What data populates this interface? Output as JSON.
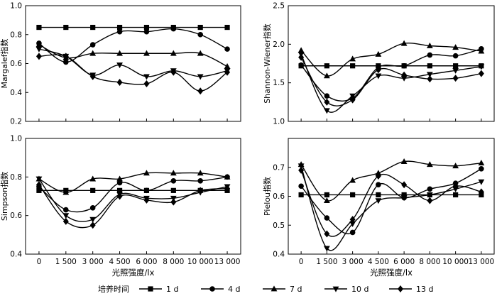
{
  "legend": {
    "title": "培养时间",
    "entries": [
      "1 d",
      "4 d",
      "7 d",
      "10 d",
      "13 d"
    ],
    "markers": [
      "square",
      "circle",
      "triangle-up",
      "triangle-down",
      "diamond"
    ]
  },
  "chart_data": [
    {
      "type": "line",
      "ylabel": "Margalef指数",
      "xlabel": "",
      "categories": [
        "0",
        "1 500",
        "3 000",
        "4 500",
        "6 000",
        "8 000",
        "10 000",
        "13 000"
      ],
      "ylim": [
        0.2,
        1.0
      ],
      "yticks": [
        0.2,
        0.4,
        0.6,
        0.8,
        1.0
      ],
      "ytick_labels": [
        "0.2",
        "0.4",
        "0.6",
        "0.8",
        "1.0"
      ],
      "show_xtick_labels": false,
      "series": [
        {
          "name": "1 d",
          "marker": "square",
          "values": [
            0.85,
            0.85,
            0.85,
            0.85,
            0.85,
            0.85,
            0.85,
            0.85
          ]
        },
        {
          "name": "4 d",
          "marker": "circle",
          "values": [
            0.74,
            0.61,
            0.73,
            0.82,
            0.82,
            0.84,
            0.8,
            0.7
          ]
        },
        {
          "name": "7 d",
          "marker": "triangle-up",
          "values": [
            0.73,
            0.64,
            0.67,
            0.67,
            0.67,
            0.67,
            0.67,
            0.58
          ]
        },
        {
          "name": "10 d",
          "marker": "triangle-down",
          "values": [
            0.7,
            0.65,
            0.52,
            0.59,
            0.51,
            0.55,
            0.51,
            0.55
          ]
        },
        {
          "name": "13 d",
          "marker": "diamond",
          "values": [
            0.65,
            0.65,
            0.51,
            0.47,
            0.46,
            0.54,
            0.41,
            0.54
          ]
        }
      ]
    },
    {
      "type": "line",
      "ylabel": "Shannon-Wiener指数",
      "xlabel": "",
      "categories": [
        "0",
        "1 500",
        "3 000",
        "4 500",
        "6 000",
        "8 000",
        "10 000",
        "13 000"
      ],
      "ylim": [
        1.0,
        2.5
      ],
      "yticks": [
        1.0,
        1.5,
        2.0,
        2.5
      ],
      "ytick_labels": [
        "1.0",
        "1.5",
        "2.0",
        "2.5"
      ],
      "show_xtick_labels": false,
      "series": [
        {
          "name": "1 d",
          "marker": "square",
          "values": [
            1.72,
            1.72,
            1.72,
            1.72,
            1.72,
            1.72,
            1.72,
            1.72
          ]
        },
        {
          "name": "4 d",
          "marker": "circle",
          "values": [
            1.73,
            1.33,
            1.3,
            1.7,
            1.72,
            1.86,
            1.85,
            1.94
          ]
        },
        {
          "name": "7 d",
          "marker": "triangle-up",
          "values": [
            1.92,
            1.59,
            1.81,
            1.87,
            2.01,
            1.98,
            1.96,
            1.91
          ]
        },
        {
          "name": "10 d",
          "marker": "triangle-down",
          "values": [
            1.87,
            1.14,
            1.33,
            1.59,
            1.56,
            1.61,
            1.66,
            1.71
          ]
        },
        {
          "name": "13 d",
          "marker": "diamond",
          "values": [
            1.83,
            1.25,
            1.28,
            1.67,
            1.6,
            1.55,
            1.56,
            1.62
          ]
        }
      ]
    },
    {
      "type": "line",
      "ylabel": "Simpson指数",
      "xlabel": "光照强度/lx",
      "categories": [
        "0",
        "1 500",
        "3 000",
        "4 500",
        "6 000",
        "8 000",
        "10 000",
        "13 000"
      ],
      "ylim": [
        0.4,
        1.0
      ],
      "yticks": [
        0.4,
        0.6,
        0.8,
        1.0
      ],
      "ytick_labels": [
        "0.4",
        "0.6",
        "0.8",
        "1.0"
      ],
      "show_xtick_labels": true,
      "series": [
        {
          "name": "1 d",
          "marker": "square",
          "values": [
            0.73,
            0.73,
            0.73,
            0.73,
            0.73,
            0.73,
            0.73,
            0.73
          ]
        },
        {
          "name": "4 d",
          "marker": "circle",
          "values": [
            0.75,
            0.63,
            0.64,
            0.77,
            0.73,
            0.78,
            0.78,
            0.8
          ]
        },
        {
          "name": "7 d",
          "marker": "triangle-up",
          "values": [
            0.79,
            0.72,
            0.79,
            0.79,
            0.82,
            0.82,
            0.82,
            0.8
          ]
        },
        {
          "name": "10 d",
          "marker": "triangle-down",
          "values": [
            0.79,
            0.6,
            0.58,
            0.71,
            0.69,
            0.69,
            0.72,
            0.75
          ]
        },
        {
          "name": "13 d",
          "marker": "diamond",
          "values": [
            0.76,
            0.57,
            0.55,
            0.7,
            0.68,
            0.67,
            0.73,
            0.74
          ]
        }
      ]
    },
    {
      "type": "line",
      "ylabel": "Pielou指数",
      "xlabel": "光照强度/lx",
      "categories": [
        "0",
        "1 500",
        "3 000",
        "4 500",
        "6 000",
        "8 000",
        "10 000",
        "13 000"
      ],
      "ylim": [
        0.4,
        0.8
      ],
      "yticks": [
        0.4,
        0.5,
        0.6,
        0.7
      ],
      "ytick_labels": [
        "0.4",
        "0.5",
        "0.6",
        "0.7"
      ],
      "show_xtick_labels": true,
      "series": [
        {
          "name": "1 d",
          "marker": "square",
          "values": [
            0.605,
            0.605,
            0.605,
            0.605,
            0.605,
            0.605,
            0.605,
            0.605
          ]
        },
        {
          "name": "4 d",
          "marker": "circle",
          "values": [
            0.635,
            0.525,
            0.475,
            0.64,
            0.595,
            0.625,
            0.645,
            0.695
          ]
        },
        {
          "name": "7 d",
          "marker": "triangle-up",
          "values": [
            0.71,
            0.585,
            0.655,
            0.68,
            0.72,
            0.71,
            0.705,
            0.715
          ]
        },
        {
          "name": "10 d",
          "marker": "triangle-down",
          "values": [
            0.705,
            0.42,
            0.505,
            0.585,
            0.595,
            0.605,
            0.625,
            0.65
          ]
        },
        {
          "name": "13 d",
          "marker": "diamond",
          "values": [
            0.69,
            0.47,
            0.52,
            0.67,
            0.64,
            0.585,
            0.635,
            0.615
          ]
        }
      ]
    }
  ]
}
